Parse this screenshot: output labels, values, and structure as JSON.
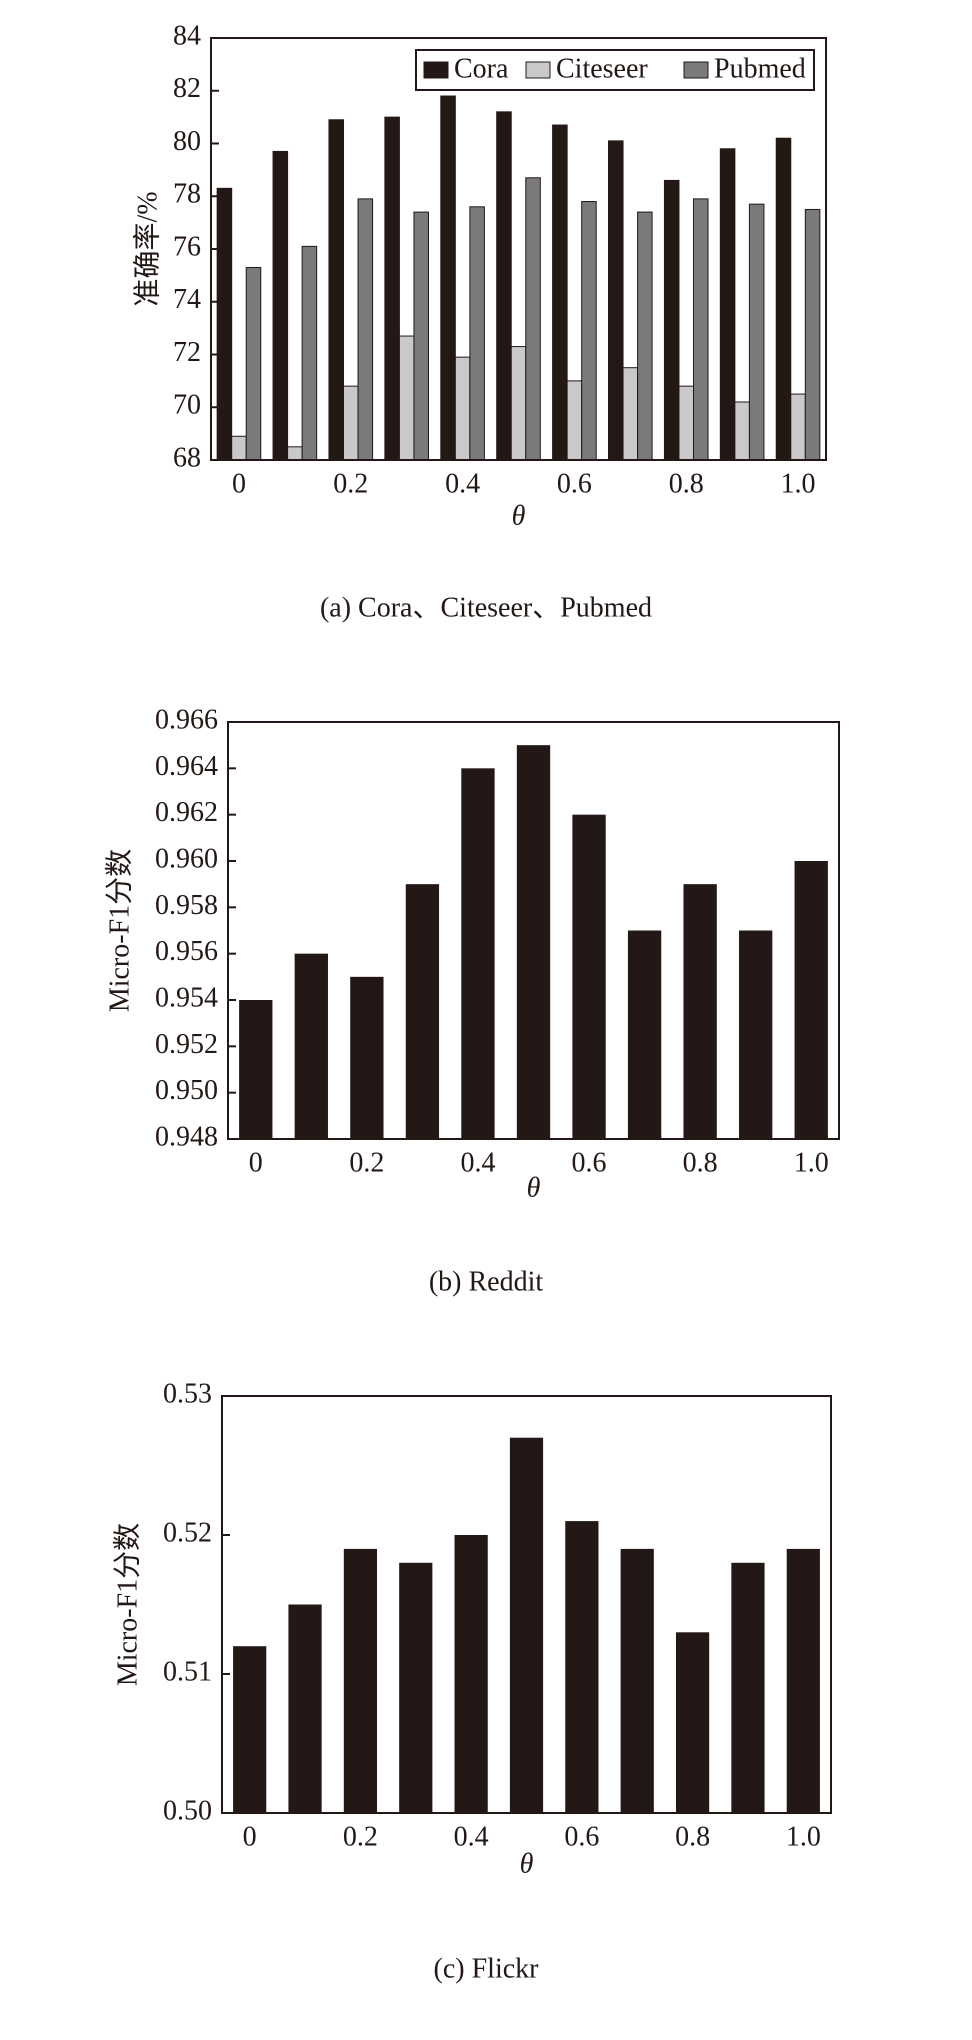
{
  "chart_data": [
    {
      "type": "grouped-bar",
      "caption": "(a) Cora、Citeseer、Pubmed",
      "y_label": "准确率/%",
      "x_label": "θ",
      "categories": [
        "0",
        null,
        "0.2",
        null,
        "0.4",
        null,
        "0.6",
        null,
        "0.8",
        null,
        "1.0"
      ],
      "series": [
        {
          "name": "Cora",
          "color": "#231815",
          "values": [
            78.3,
            79.7,
            80.9,
            81.0,
            81.8,
            81.2,
            80.7,
            80.1,
            78.6,
            79.8,
            80.2
          ]
        },
        {
          "name": "Citeseer",
          "color": "#c9c9c9",
          "values": [
            68.9,
            68.5,
            70.8,
            72.7,
            71.9,
            72.3,
            71.0,
            71.5,
            70.8,
            70.2,
            70.5
          ]
        },
        {
          "name": "Pubmed",
          "color": "#7a7a7a",
          "values": [
            75.3,
            76.1,
            77.9,
            77.4,
            77.6,
            78.7,
            77.8,
            77.4,
            77.9,
            77.7,
            77.5
          ]
        }
      ],
      "ylim": [
        68,
        84
      ],
      "yticks": [
        68,
        70,
        72,
        74,
        76,
        78,
        80,
        82,
        84
      ],
      "legend": "upper right"
    },
    {
      "type": "bar",
      "caption": "(b) Reddit",
      "y_label": "Micro-F1分数",
      "x_label": "θ",
      "categories": [
        "0",
        null,
        "0.2",
        null,
        "0.4",
        null,
        "0.6",
        null,
        "0.8",
        null,
        "1.0"
      ],
      "values": [
        0.954,
        0.956,
        0.955,
        0.959,
        0.964,
        0.965,
        0.962,
        0.957,
        0.959,
        0.957,
        0.96
      ],
      "color": "#231815",
      "ylim": [
        0.948,
        0.966
      ],
      "yticks": [
        0.948,
        {
          "value": 0.95,
          "label": "0.950"
        },
        0.952,
        0.954,
        0.956,
        0.958,
        {
          "value": 0.96,
          "label": "0.960"
        },
        0.962,
        0.964,
        0.966
      ]
    },
    {
      "type": "bar",
      "caption": "(c) Flickr",
      "y_label": "Micro-F1分数",
      "x_label": "θ",
      "categories": [
        "0",
        null,
        "0.2",
        null,
        "0.4",
        null,
        "0.6",
        null,
        "0.8",
        null,
        "1.0"
      ],
      "values": [
        0.512,
        0.515,
        0.519,
        0.518,
        0.52,
        0.527,
        0.521,
        0.519,
        0.513,
        0.518,
        0.519
      ],
      "color": "#231815",
      "ylim": [
        0.5,
        0.53
      ],
      "yticks": [
        {
          "value": 0.5,
          "label": "0.50"
        },
        {
          "value": 0.51,
          "label": "0.51"
        },
        {
          "value": 0.52,
          "label": "0.52"
        },
        {
          "value": 0.53,
          "label": "0.53"
        }
      ]
    }
  ]
}
